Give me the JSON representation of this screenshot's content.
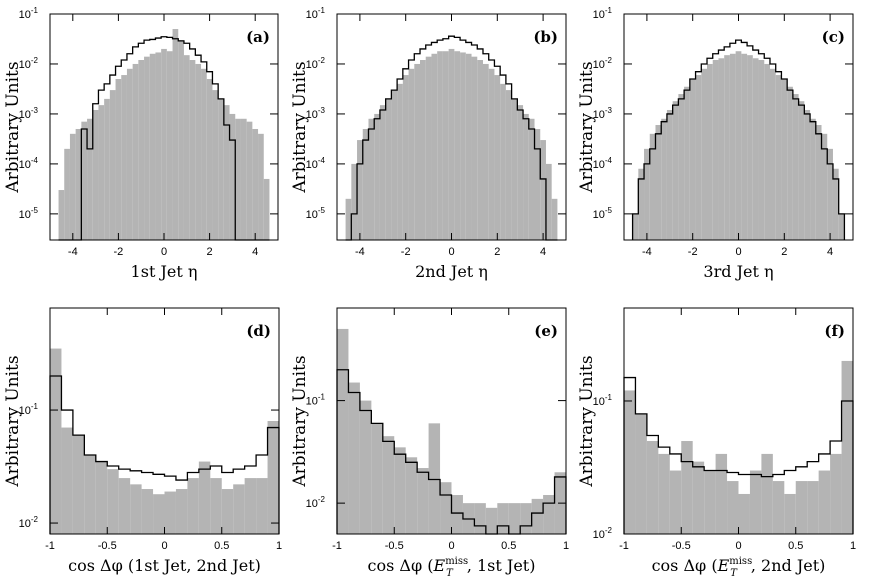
{
  "chart_data": [
    {
      "panel": "a",
      "type": "bar",
      "xlabel": "1st Jet η",
      "ylabel": "Arbitrary Units",
      "yscale": "log",
      "xlim": [
        -5,
        5
      ],
      "ylim": [
        3e-06,
        0.1
      ],
      "xticks": [
        -4,
        -2,
        0,
        2,
        4
      ],
      "yticks": [
        {
          "v": 0.1,
          "label": "10-1"
        },
        {
          "v": 0.01,
          "label": "10-2"
        },
        {
          "v": 0.001,
          "label": "10-3"
        },
        {
          "v": 0.0001,
          "label": "10-4"
        },
        {
          "v": 1e-05,
          "label": "10-5"
        }
      ],
      "bin_width": 0.25,
      "x": [
        -4.5,
        -4.25,
        -4.0,
        -3.75,
        -3.5,
        -3.25,
        -3.0,
        -2.75,
        -2.5,
        -2.25,
        -2.0,
        -1.75,
        -1.5,
        -1.25,
        -1.0,
        -0.75,
        -0.5,
        -0.25,
        0.0,
        0.25,
        0.5,
        0.75,
        1.0,
        1.25,
        1.5,
        1.75,
        2.0,
        2.25,
        2.5,
        2.75,
        3.0,
        3.25,
        3.5,
        3.75,
        4.0,
        4.25,
        4.5
      ],
      "series": [
        {
          "label": "gray",
          "values": [
            3e-05,
            0.0002,
            0.0004,
            0.0005,
            0.0007,
            0.0008,
            0.0012,
            0.0015,
            0.002,
            0.003,
            0.005,
            0.006,
            0.008,
            0.01,
            0.012,
            0.014,
            0.016,
            0.017,
            0.02,
            0.018,
            0.05,
            0.03,
            0.015,
            0.012,
            0.01,
            0.008,
            0.005,
            0.003,
            0.002,
            0.0015,
            0.001,
            0.0008,
            0.0008,
            0.0007,
            0.0005,
            0.0004,
            5e-05
          ]
        },
        {
          "label": "black",
          "values": [
            0.0,
            0.0,
            0.0,
            0.0,
            0.0005,
            0.0002,
            0.0016,
            0.003,
            0.004,
            0.006,
            0.009,
            0.012,
            0.016,
            0.022,
            0.026,
            0.03,
            0.031,
            0.033,
            0.035,
            0.034,
            0.032,
            0.029,
            0.026,
            0.02,
            0.015,
            0.011,
            0.007,
            0.004,
            0.002,
            0.0006,
            0.0003,
            0.0,
            0.0,
            0.0,
            0.0,
            0.0,
            0.0
          ]
        }
      ]
    },
    {
      "panel": "b",
      "type": "bar",
      "xlabel": "2nd Jet η",
      "ylabel": "Arbitrary Units",
      "yscale": "log",
      "xlim": [
        -5,
        5
      ],
      "ylim": [
        3e-06,
        0.1
      ],
      "xticks": [
        -4,
        -2,
        0,
        2,
        4
      ],
      "yticks": [
        {
          "v": 0.1,
          "label": "10-1"
        },
        {
          "v": 0.01,
          "label": "10-2"
        },
        {
          "v": 0.001,
          "label": "10-3"
        },
        {
          "v": 0.0001,
          "label": "10-4"
        },
        {
          "v": 1e-05,
          "label": "10-5"
        }
      ],
      "bin_width": 0.25,
      "x": [
        -4.5,
        -4.25,
        -4.0,
        -3.75,
        -3.5,
        -3.25,
        -3.0,
        -2.75,
        -2.5,
        -2.25,
        -2.0,
        -1.75,
        -1.5,
        -1.25,
        -1.0,
        -0.75,
        -0.5,
        -0.25,
        0.0,
        0.25,
        0.5,
        0.75,
        1.0,
        1.25,
        1.5,
        1.75,
        2.0,
        2.25,
        2.5,
        2.75,
        3.0,
        3.25,
        3.5,
        3.75,
        4.0,
        4.25,
        4.5
      ],
      "series": [
        {
          "label": "gray",
          "values": [
            2e-05,
            0.0001,
            0.0003,
            0.0005,
            0.0008,
            0.001,
            0.0015,
            0.002,
            0.003,
            0.004,
            0.006,
            0.008,
            0.01,
            0.012,
            0.014,
            0.016,
            0.018,
            0.018,
            0.02,
            0.018,
            0.017,
            0.016,
            0.014,
            0.012,
            0.01,
            0.008,
            0.006,
            0.004,
            0.003,
            0.002,
            0.0015,
            0.001,
            0.0008,
            0.0005,
            0.0003,
            0.0001,
            2e-05
          ]
        },
        {
          "label": "black",
          "values": [
            0.0,
            1e-05,
            0.0001,
            0.0003,
            0.0005,
            0.0008,
            0.0012,
            0.002,
            0.003,
            0.005,
            0.008,
            0.012,
            0.016,
            0.02,
            0.024,
            0.027,
            0.03,
            0.032,
            0.036,
            0.034,
            0.03,
            0.027,
            0.024,
            0.02,
            0.016,
            0.012,
            0.009,
            0.006,
            0.004,
            0.002,
            0.0012,
            0.0008,
            0.0005,
            0.0002,
            5e-05,
            0.0,
            0.0
          ]
        }
      ]
    },
    {
      "panel": "c",
      "type": "bar",
      "xlabel": "3rd Jet η",
      "ylabel": "Arbitrary Units",
      "yscale": "log",
      "xlim": [
        -5,
        5
      ],
      "ylim": [
        3e-06,
        0.1
      ],
      "xticks": [
        -4,
        -2,
        0,
        2,
        4
      ],
      "yticks": [
        {
          "v": 0.1,
          "label": "10-1"
        },
        {
          "v": 0.01,
          "label": "10-2"
        },
        {
          "v": 0.001,
          "label": "10-3"
        },
        {
          "v": 0.0001,
          "label": "10-4"
        },
        {
          "v": 1e-05,
          "label": "10-5"
        }
      ],
      "bin_width": 0.25,
      "x": [
        -4.5,
        -4.25,
        -4.0,
        -3.75,
        -3.5,
        -3.25,
        -3.0,
        -2.75,
        -2.5,
        -2.25,
        -2.0,
        -1.75,
        -1.5,
        -1.25,
        -1.0,
        -0.75,
        -0.5,
        -0.25,
        0.0,
        0.25,
        0.5,
        0.75,
        1.0,
        1.25,
        1.5,
        1.75,
        2.0,
        2.25,
        2.5,
        2.75,
        3.0,
        3.25,
        3.5,
        3.75,
        4.0,
        4.25,
        4.5
      ],
      "series": [
        {
          "label": "gray",
          "values": [
            1e-05,
            8e-05,
            0.0002,
            0.0004,
            0.0006,
            0.0008,
            0.0012,
            0.0018,
            0.0025,
            0.0035,
            0.005,
            0.006,
            0.008,
            0.01,
            0.012,
            0.013,
            0.015,
            0.016,
            0.018,
            0.016,
            0.015,
            0.013,
            0.012,
            0.01,
            0.008,
            0.006,
            0.005,
            0.0035,
            0.0025,
            0.0018,
            0.0012,
            0.0008,
            0.0006,
            0.0004,
            0.0002,
            8e-05,
            1e-05
          ]
        },
        {
          "label": "black",
          "values": [
            1e-05,
            5e-05,
            0.0001,
            0.0002,
            0.0004,
            0.0007,
            0.001,
            0.0015,
            0.002,
            0.003,
            0.005,
            0.007,
            0.01,
            0.013,
            0.016,
            0.019,
            0.022,
            0.026,
            0.03,
            0.027,
            0.023,
            0.019,
            0.016,
            0.013,
            0.01,
            0.007,
            0.005,
            0.003,
            0.002,
            0.0015,
            0.001,
            0.0007,
            0.0004,
            0.0002,
            0.0001,
            5e-05,
            1e-05
          ]
        }
      ]
    },
    {
      "panel": "d",
      "type": "bar",
      "xlabel": "cos Δφ (1st Jet, 2nd Jet)",
      "ylabel": "Arbitrary Units",
      "yscale": "log",
      "xlim": [
        -1,
        1
      ],
      "ylim": [
        0.008,
        0.8
      ],
      "xticks": [
        -1,
        -0.5,
        0,
        0.5,
        1
      ],
      "yticks": [
        {
          "v": 0.1,
          "label": "10-1"
        },
        {
          "v": 0.01,
          "label": "10-2"
        }
      ],
      "bin_width": 0.1,
      "x": [
        -0.95,
        -0.85,
        -0.75,
        -0.65,
        -0.55,
        -0.45,
        -0.35,
        -0.25,
        -0.15,
        -0.05,
        0.05,
        0.15,
        0.25,
        0.35,
        0.45,
        0.55,
        0.65,
        0.75,
        0.85,
        0.95
      ],
      "series": [
        {
          "label": "gray",
          "values": [
            0.35,
            0.07,
            0.06,
            0.04,
            0.035,
            0.03,
            0.025,
            0.022,
            0.02,
            0.018,
            0.019,
            0.02,
            0.025,
            0.035,
            0.025,
            0.02,
            0.022,
            0.025,
            0.025,
            0.08
          ]
        },
        {
          "label": "black",
          "values": [
            0.2,
            0.1,
            0.06,
            0.04,
            0.035,
            0.032,
            0.03,
            0.029,
            0.028,
            0.027,
            0.026,
            0.024,
            0.028,
            0.03,
            0.032,
            0.028,
            0.03,
            0.032,
            0.04,
            0.07
          ]
        }
      ]
    },
    {
      "panel": "e",
      "type": "bar",
      "xlabel": "cos Δφ (E_T^miss, 1st Jet)",
      "ylabel": "Arbitrary Units",
      "yscale": "log",
      "xlim": [
        -1,
        1
      ],
      "ylim": [
        0.005,
        0.8
      ],
      "xticks": [
        -1,
        -0.5,
        0,
        0.5,
        1
      ],
      "yticks": [
        {
          "v": 0.1,
          "label": "10-1"
        },
        {
          "v": 0.01,
          "label": "10-2"
        }
      ],
      "bin_width": 0.1,
      "x": [
        -0.95,
        -0.85,
        -0.75,
        -0.65,
        -0.55,
        -0.45,
        -0.35,
        -0.25,
        -0.15,
        -0.05,
        0.05,
        0.15,
        0.25,
        0.35,
        0.45,
        0.55,
        0.65,
        0.75,
        0.85,
        0.95
      ],
      "series": [
        {
          "label": "gray",
          "values": [
            0.5,
            0.15,
            0.1,
            0.06,
            0.045,
            0.035,
            0.028,
            0.022,
            0.06,
            0.016,
            0.012,
            0.01,
            0.01,
            0.009,
            0.01,
            0.01,
            0.01,
            0.011,
            0.012,
            0.02
          ]
        },
        {
          "label": "black",
          "values": [
            0.2,
            0.12,
            0.08,
            0.06,
            0.04,
            0.03,
            0.025,
            0.02,
            0.017,
            0.012,
            0.008,
            0.007,
            0.006,
            0.005,
            0.006,
            0.005,
            0.006,
            0.008,
            0.01,
            0.018
          ]
        }
      ]
    },
    {
      "panel": "f",
      "type": "bar",
      "xlabel": "cos Δφ (E_T^miss, 2nd Jet)",
      "ylabel": "Arbitrary Units",
      "yscale": "log",
      "xlim": [
        -1,
        1
      ],
      "ylim": [
        0.01,
        0.5
      ],
      "xticks": [
        -1,
        -0.5,
        0,
        0.5,
        1
      ],
      "yticks": [
        {
          "v": 0.1,
          "label": "10-1"
        },
        {
          "v": 0.01,
          "label": "10-2"
        }
      ],
      "bin_width": 0.1,
      "x": [
        -0.95,
        -0.85,
        -0.75,
        -0.65,
        -0.55,
        -0.45,
        -0.35,
        -0.25,
        -0.15,
        -0.05,
        0.05,
        0.15,
        0.25,
        0.35,
        0.45,
        0.55,
        0.65,
        0.75,
        0.85,
        0.95
      ],
      "series": [
        {
          "label": "gray",
          "values": [
            0.12,
            0.08,
            0.05,
            0.04,
            0.03,
            0.05,
            0.035,
            0.03,
            0.04,
            0.025,
            0.02,
            0.03,
            0.04,
            0.025,
            0.02,
            0.025,
            0.025,
            0.03,
            0.04,
            0.2
          ]
        },
        {
          "label": "black",
          "values": [
            0.15,
            0.08,
            0.055,
            0.045,
            0.04,
            0.035,
            0.032,
            0.03,
            0.03,
            0.029,
            0.028,
            0.028,
            0.027,
            0.028,
            0.03,
            0.032,
            0.035,
            0.04,
            0.05,
            0.1
          ]
        }
      ]
    }
  ],
  "panel_labels": [
    "(a)",
    "(b)",
    "(c)",
    "(d)",
    "(e)",
    "(f)"
  ],
  "style": {
    "fill": "#b4b4b4",
    "line": "#000000",
    "background": "#ffffff"
  }
}
